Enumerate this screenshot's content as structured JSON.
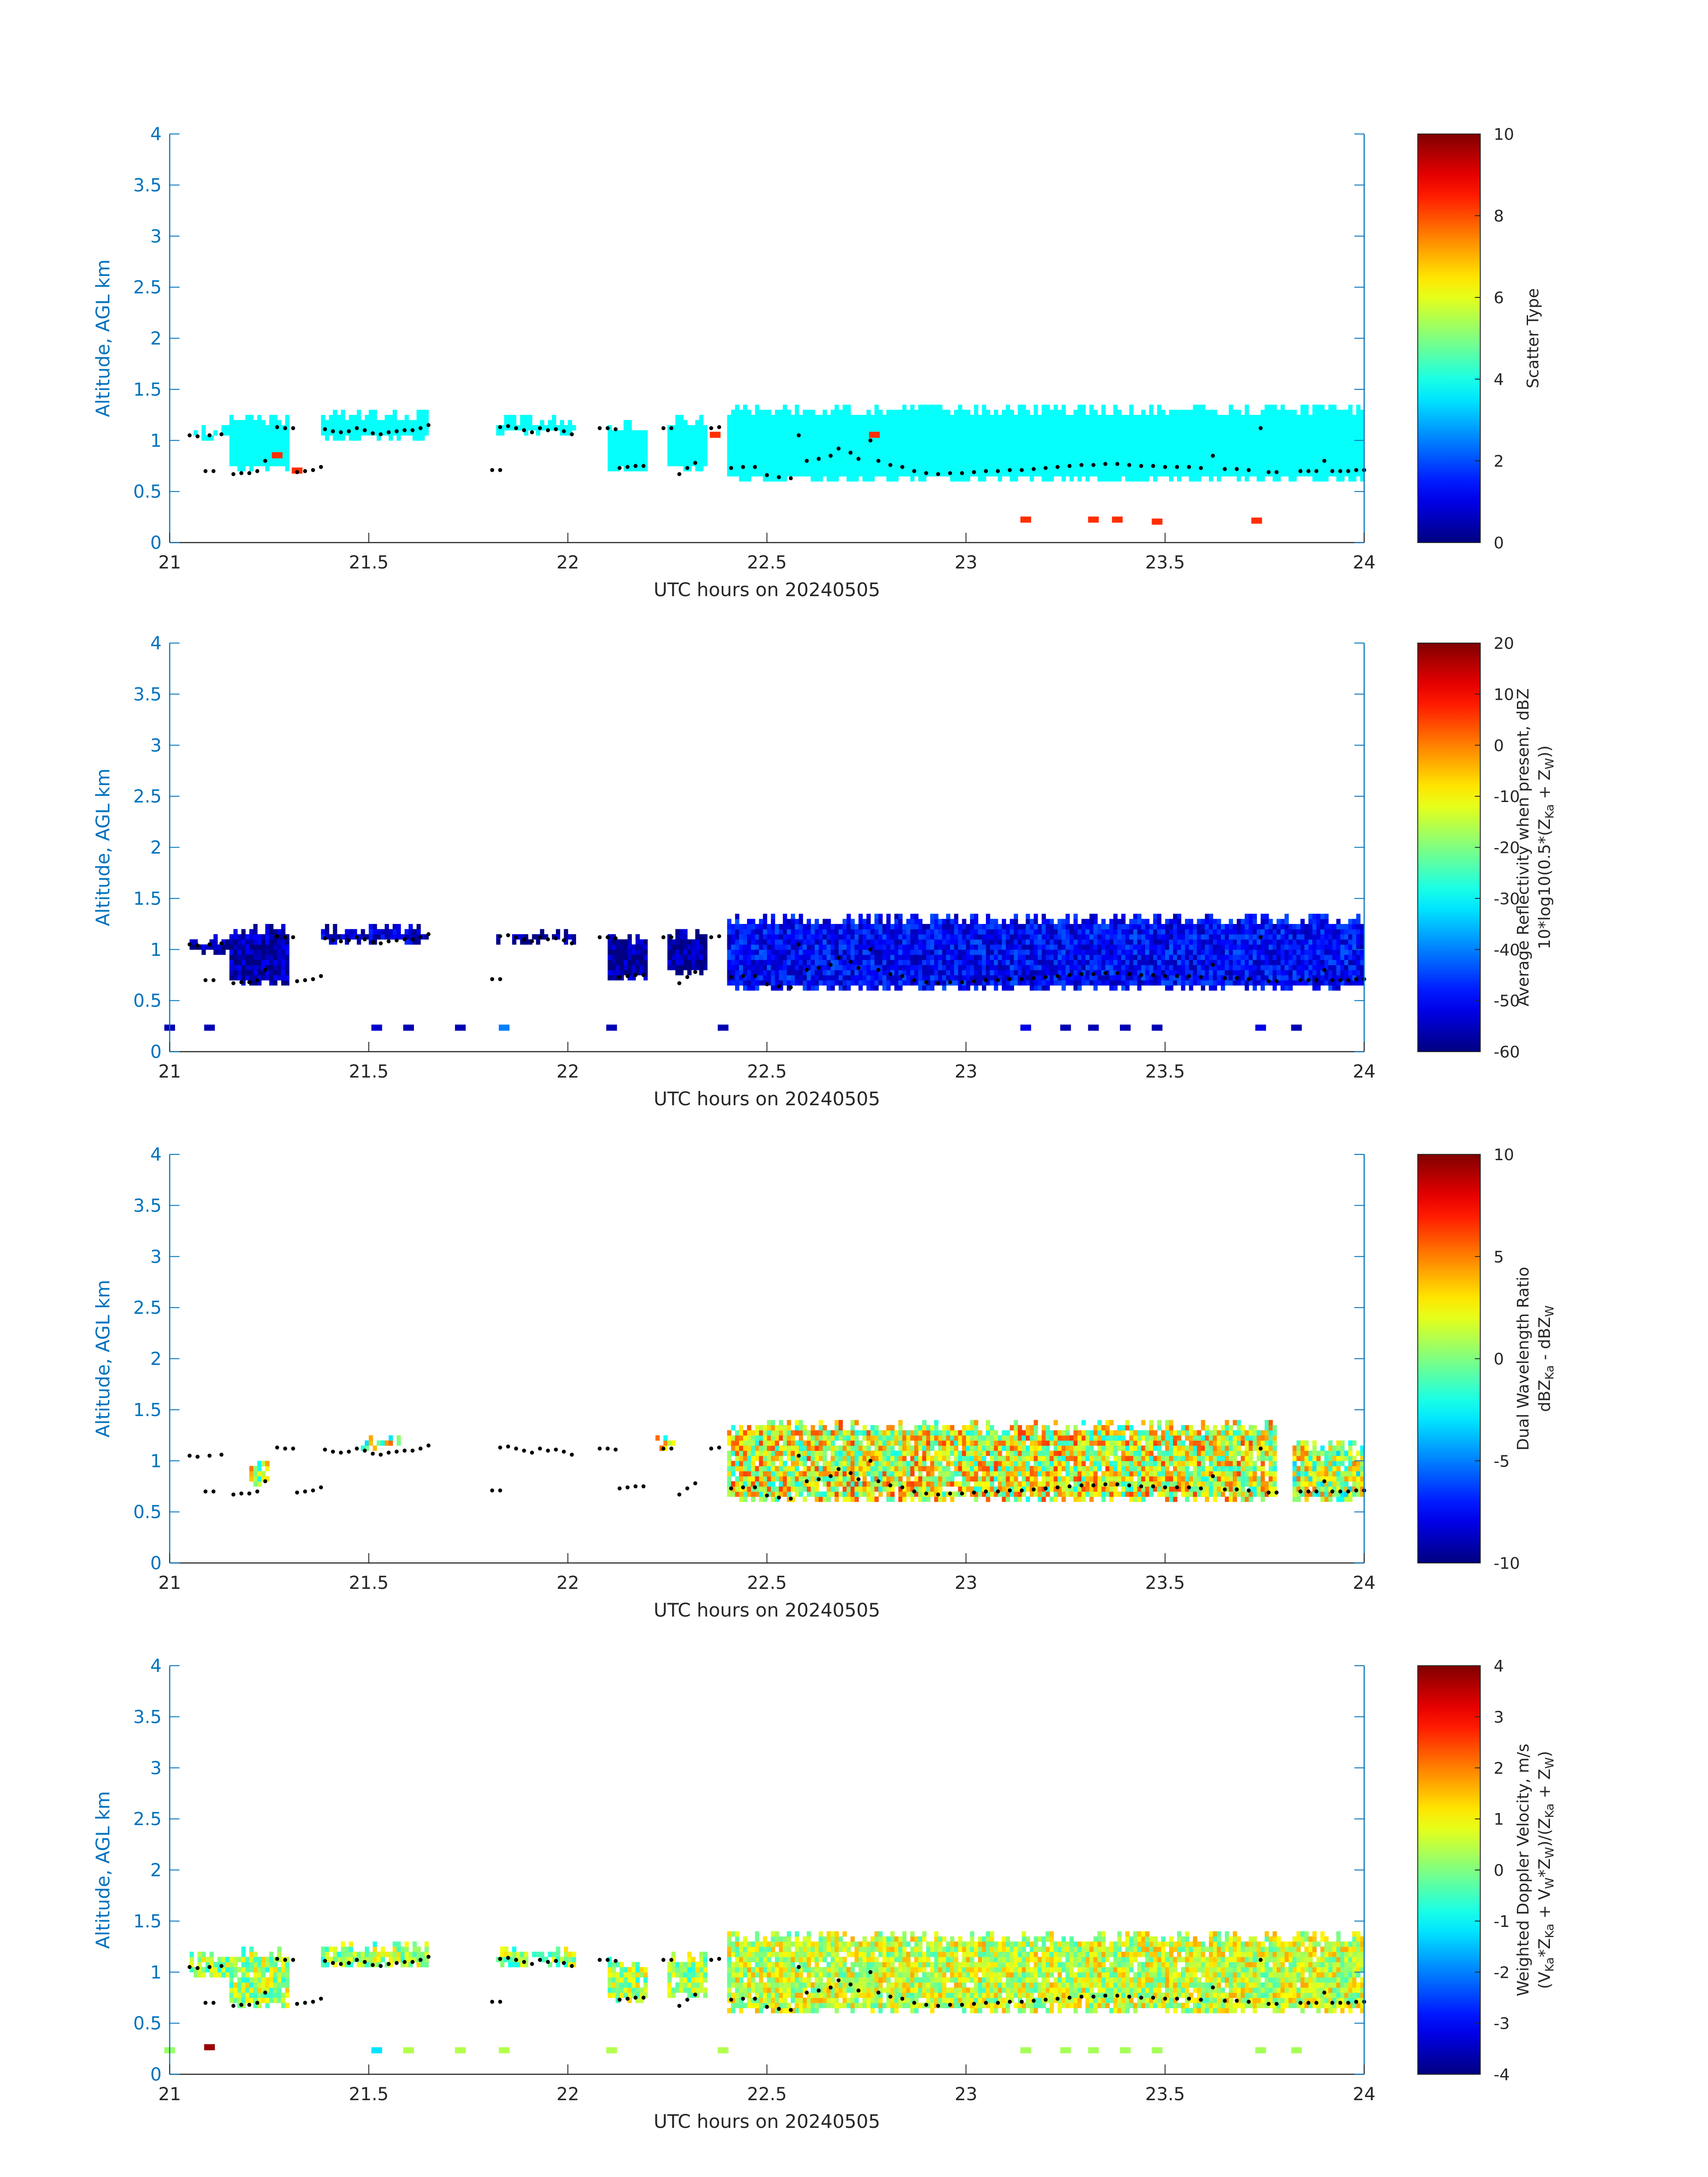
{
  "chart_data": [
    {
      "type": "heatmap",
      "id": "scatter-type",
      "xlabel": "UTC hours on 20240505",
      "ylabel": "Altitude, AGL km",
      "xlim": [
        21,
        24
      ],
      "ylim": [
        0,
        4
      ],
      "x_ticks": [
        "21",
        "21.5",
        "22",
        "22.5",
        "23",
        "23.5",
        "24"
      ],
      "y_ticks": [
        "0",
        "0.5",
        "1",
        "1.5",
        "2",
        "2.5",
        "3",
        "3.5",
        "4"
      ],
      "colorbar": {
        "label_lines": [
          "Scatter Type"
        ],
        "range": [
          0,
          10
        ],
        "ticks": [
          "0",
          "2",
          "4",
          "6",
          "8",
          "10"
        ],
        "colormap": "jet"
      },
      "regions": [
        {
          "x": [
            21.05,
            21.15
          ],
          "y": [
            1.0,
            1.15
          ],
          "value": 3.8
        },
        {
          "x": [
            21.15,
            21.3
          ],
          "y": [
            0.7,
            1.25
          ],
          "value": 3.8
        },
        {
          "x": [
            21.38,
            21.65
          ],
          "y": [
            1.0,
            1.3
          ],
          "value": 3.8
        },
        {
          "x": [
            21.82,
            22.02
          ],
          "y": [
            1.05,
            1.25
          ],
          "value": 3.8
        },
        {
          "x": [
            22.1,
            22.2
          ],
          "y": [
            0.7,
            1.2
          ],
          "value": 3.8
        },
        {
          "x": [
            22.25,
            22.35
          ],
          "y": [
            0.7,
            1.25
          ],
          "value": 3.8
        },
        {
          "x": [
            22.4,
            24.0
          ],
          "y": [
            0.62,
            1.35
          ],
          "value": 3.8
        }
      ],
      "spots": [
        {
          "x": 21.27,
          "y": 0.85,
          "value": 8.3
        },
        {
          "x": 21.32,
          "y": 0.7,
          "value": 8.3
        },
        {
          "x": 22.37,
          "y": 1.05,
          "value": 8.3
        },
        {
          "x": 22.77,
          "y": 1.05,
          "value": 8.3
        },
        {
          "x": 23.15,
          "y": 0.22,
          "value": 8.3
        },
        {
          "x": 23.32,
          "y": 0.22,
          "value": 8.3
        },
        {
          "x": 23.38,
          "y": 0.22,
          "value": 8.3
        },
        {
          "x": 23.48,
          "y": 0.2,
          "value": 8.3
        },
        {
          "x": 23.73,
          "y": 0.21,
          "value": 8.3
        }
      ]
    },
    {
      "type": "heatmap",
      "id": "reflectivity",
      "xlabel": "UTC hours on 20240505",
      "ylabel": "Altitude, AGL km",
      "xlim": [
        21,
        24
      ],
      "ylim": [
        0,
        4
      ],
      "x_ticks": [
        "21",
        "21.5",
        "22",
        "22.5",
        "23",
        "23.5",
        "24"
      ],
      "y_ticks": [
        "0",
        "0.5",
        "1",
        "1.5",
        "2",
        "2.5",
        "3",
        "3.5",
        "4"
      ],
      "colorbar": {
        "label_lines": [
          "Average Reflectivity when present, dBZ",
          "10*log10(0.5*(Z",
          "Ka",
          " + Z",
          "W",
          "))"
        ],
        "range": [
          -60,
          20
        ],
        "ticks": [
          "-60",
          "-50",
          "-40",
          "-30",
          "-20",
          "-10",
          "0",
          "10",
          "20"
        ],
        "colormap": "jet"
      },
      "regions": [
        {
          "x": [
            21.05,
            21.15
          ],
          "y": [
            0.95,
            1.15
          ],
          "value": -58
        },
        {
          "x": [
            21.15,
            21.3
          ],
          "y": [
            0.65,
            1.25
          ],
          "value": -56
        },
        {
          "x": [
            21.38,
            21.65
          ],
          "y": [
            1.05,
            1.25
          ],
          "value": -54
        },
        {
          "x": [
            21.82,
            22.02
          ],
          "y": [
            1.05,
            1.2
          ],
          "value": -58
        },
        {
          "x": [
            22.1,
            22.2
          ],
          "y": [
            0.7,
            1.15
          ],
          "value": -58
        },
        {
          "x": [
            22.25,
            22.35
          ],
          "y": [
            0.75,
            1.2
          ],
          "value": -58
        },
        {
          "x": [
            22.4,
            24.0
          ],
          "y": [
            0.6,
            1.35
          ],
          "value": -50
        }
      ],
      "spots": [
        {
          "x": 21.0,
          "y": 0.23,
          "value": -56
        },
        {
          "x": 21.1,
          "y": 0.23,
          "value": -56
        },
        {
          "x": 21.52,
          "y": 0.23,
          "value": -54
        },
        {
          "x": 21.6,
          "y": 0.23,
          "value": -56
        },
        {
          "x": 21.73,
          "y": 0.23,
          "value": -56
        },
        {
          "x": 21.84,
          "y": 0.23,
          "value": -40
        },
        {
          "x": 22.11,
          "y": 0.23,
          "value": -56
        },
        {
          "x": 22.39,
          "y": 0.23,
          "value": -56
        },
        {
          "x": 23.15,
          "y": 0.23,
          "value": -52
        },
        {
          "x": 23.25,
          "y": 0.23,
          "value": -56
        },
        {
          "x": 23.32,
          "y": 0.23,
          "value": -56
        },
        {
          "x": 23.4,
          "y": 0.23,
          "value": -56
        },
        {
          "x": 23.48,
          "y": 0.23,
          "value": -56
        },
        {
          "x": 23.74,
          "y": 0.23,
          "value": -52
        },
        {
          "x": 23.83,
          "y": 0.23,
          "value": -56
        }
      ]
    },
    {
      "type": "heatmap",
      "id": "dual-wavelength-ratio",
      "xlabel": "UTC hours on 20240505",
      "ylabel": "Altitude, AGL km",
      "xlim": [
        21,
        24
      ],
      "ylim": [
        0,
        4
      ],
      "x_ticks": [
        "21",
        "21.5",
        "22",
        "22.5",
        "23",
        "23.5",
        "24"
      ],
      "y_ticks": [
        "0",
        "0.5",
        "1",
        "1.5",
        "2",
        "2.5",
        "3",
        "3.5",
        "4"
      ],
      "colorbar": {
        "label_lines": [
          "Dual Wavelength Ratio",
          "dBZ",
          "Ka",
          " - dBZ",
          "W"
        ],
        "range": [
          -10,
          10
        ],
        "ticks": [
          "-10",
          "-5",
          "0",
          "5",
          "10"
        ],
        "colormap": "jet"
      },
      "regions": [
        {
          "x": [
            21.2,
            21.25
          ],
          "y": [
            0.75,
            1.0
          ],
          "value": 1.5
        },
        {
          "x": [
            21.48,
            21.58
          ],
          "y": [
            1.1,
            1.25
          ],
          "value": 1.0
        },
        {
          "x": [
            22.22,
            22.27
          ],
          "y": [
            1.1,
            1.25
          ],
          "value": 2.0
        },
        {
          "x": [
            22.4,
            23.78
          ],
          "y": [
            0.62,
            1.38
          ],
          "value": 2.0
        },
        {
          "x": [
            23.82,
            24.0
          ],
          "y": [
            0.62,
            1.18
          ],
          "value": 1.0
        }
      ],
      "spots": []
    },
    {
      "type": "heatmap",
      "id": "doppler-velocity",
      "xlabel": "UTC hours on 20240505",
      "ylabel": "Altitude, AGL km",
      "xlim": [
        21,
        24
      ],
      "ylim": [
        0,
        4
      ],
      "x_ticks": [
        "21",
        "21.5",
        "22",
        "22.5",
        "23",
        "23.5",
        "24"
      ],
      "y_ticks": [
        "0",
        "0.5",
        "1",
        "1.5",
        "2",
        "2.5",
        "3",
        "3.5",
        "4"
      ],
      "colorbar": {
        "label_lines": [
          "Weighted Doppler Velocity, m/s",
          "(V",
          "Ka",
          "*Z",
          "Ka",
          " + V",
          "W",
          "*Z",
          "W",
          ")/(Z",
          "Ka",
          " + Z",
          "W",
          ")"
        ],
        "range": [
          -4,
          4
        ],
        "ticks": [
          "-4",
          "-3",
          "-2",
          "-1",
          "0",
          "1",
          "2",
          "3",
          "4"
        ],
        "colormap": "jet"
      },
      "regions": [
        {
          "x": [
            21.05,
            21.15
          ],
          "y": [
            0.95,
            1.2
          ],
          "value": 0.2
        },
        {
          "x": [
            21.15,
            21.3
          ],
          "y": [
            0.65,
            1.25
          ],
          "value": 0.3
        },
        {
          "x": [
            21.38,
            21.65
          ],
          "y": [
            1.05,
            1.3
          ],
          "value": 0.2
        },
        {
          "x": [
            21.82,
            22.02
          ],
          "y": [
            1.05,
            1.25
          ],
          "value": 0.2
        },
        {
          "x": [
            22.1,
            22.2
          ],
          "y": [
            0.7,
            1.15
          ],
          "value": 0.3
        },
        {
          "x": [
            22.25,
            22.35
          ],
          "y": [
            0.75,
            1.2
          ],
          "value": 0.2
        },
        {
          "x": [
            22.4,
            24.0
          ],
          "y": [
            0.62,
            1.38
          ],
          "value": 0.6
        }
      ],
      "spots": [
        {
          "x": 21.0,
          "y": 0.23,
          "value": 0.2
        },
        {
          "x": 21.1,
          "y": 0.26,
          "value": 3.8
        },
        {
          "x": 21.52,
          "y": 0.23,
          "value": -1.2
        },
        {
          "x": 21.6,
          "y": 0.23,
          "value": 0.4
        },
        {
          "x": 21.73,
          "y": 0.23,
          "value": 0.4
        },
        {
          "x": 21.84,
          "y": 0.23,
          "value": 0.4
        },
        {
          "x": 22.11,
          "y": 0.23,
          "value": 0.4
        },
        {
          "x": 22.39,
          "y": 0.23,
          "value": 0.4
        },
        {
          "x": 23.15,
          "y": 0.23,
          "value": 0.3
        },
        {
          "x": 23.25,
          "y": 0.23,
          "value": 0.3
        },
        {
          "x": 23.32,
          "y": 0.23,
          "value": 0.3
        },
        {
          "x": 23.4,
          "y": 0.23,
          "value": 0.3
        },
        {
          "x": 23.48,
          "y": 0.23,
          "value": 0.3
        },
        {
          "x": 23.74,
          "y": 0.23,
          "value": 0.3
        },
        {
          "x": 23.83,
          "y": 0.23,
          "value": 0.3
        }
      ]
    }
  ],
  "cloud_base_points": [
    {
      "x": 21.05,
      "y": 1.05
    },
    {
      "x": 21.07,
      "y": 1.04
    },
    {
      "x": 21.1,
      "y": 1.05
    },
    {
      "x": 21.13,
      "y": 1.06
    },
    {
      "x": 21.09,
      "y": 0.7
    },
    {
      "x": 21.11,
      "y": 0.7
    },
    {
      "x": 21.16,
      "y": 0.67
    },
    {
      "x": 21.18,
      "y": 0.68
    },
    {
      "x": 21.2,
      "y": 0.68
    },
    {
      "x": 21.22,
      "y": 0.7
    },
    {
      "x": 21.24,
      "y": 0.8
    },
    {
      "x": 21.27,
      "y": 1.13
    },
    {
      "x": 21.29,
      "y": 1.12
    },
    {
      "x": 21.31,
      "y": 1.12
    },
    {
      "x": 21.32,
      "y": 0.69
    },
    {
      "x": 21.34,
      "y": 0.7
    },
    {
      "x": 21.36,
      "y": 0.71
    },
    {
      "x": 21.38,
      "y": 0.74
    },
    {
      "x": 21.39,
      "y": 1.11
    },
    {
      "x": 21.41,
      "y": 1.09
    },
    {
      "x": 21.43,
      "y": 1.08
    },
    {
      "x": 21.45,
      "y": 1.09
    },
    {
      "x": 21.47,
      "y": 1.12
    },
    {
      "x": 21.49,
      "y": 1.1
    },
    {
      "x": 21.51,
      "y": 1.07
    },
    {
      "x": 21.53,
      "y": 1.06
    },
    {
      "x": 21.55,
      "y": 1.08
    },
    {
      "x": 21.57,
      "y": 1.09
    },
    {
      "x": 21.59,
      "y": 1.1
    },
    {
      "x": 21.61,
      "y": 1.1
    },
    {
      "x": 21.63,
      "y": 1.12
    },
    {
      "x": 21.65,
      "y": 1.15
    },
    {
      "x": 21.81,
      "y": 0.71
    },
    {
      "x": 21.83,
      "y": 0.71
    },
    {
      "x": 21.83,
      "y": 1.13
    },
    {
      "x": 21.85,
      "y": 1.14
    },
    {
      "x": 21.87,
      "y": 1.12
    },
    {
      "x": 21.89,
      "y": 1.1
    },
    {
      "x": 21.91,
      "y": 1.08
    },
    {
      "x": 21.93,
      "y": 1.12
    },
    {
      "x": 21.95,
      "y": 1.1
    },
    {
      "x": 21.97,
      "y": 1.11
    },
    {
      "x": 21.99,
      "y": 1.09
    },
    {
      "x": 22.01,
      "y": 1.06
    },
    {
      "x": 22.08,
      "y": 1.12
    },
    {
      "x": 22.1,
      "y": 1.12
    },
    {
      "x": 22.12,
      "y": 1.11
    },
    {
      "x": 22.13,
      "y": 0.73
    },
    {
      "x": 22.15,
      "y": 0.74
    },
    {
      "x": 22.17,
      "y": 0.75
    },
    {
      "x": 22.19,
      "y": 0.75
    },
    {
      "x": 22.24,
      "y": 1.12
    },
    {
      "x": 22.26,
      "y": 1.12
    },
    {
      "x": 22.28,
      "y": 0.67
    },
    {
      "x": 22.3,
      "y": 0.73
    },
    {
      "x": 22.32,
      "y": 0.78
    },
    {
      "x": 22.36,
      "y": 1.12
    },
    {
      "x": 22.38,
      "y": 1.13
    },
    {
      "x": 22.41,
      "y": 0.73
    },
    {
      "x": 22.44,
      "y": 0.74
    },
    {
      "x": 22.47,
      "y": 0.74
    },
    {
      "x": 22.5,
      "y": 0.66
    },
    {
      "x": 22.53,
      "y": 0.64
    },
    {
      "x": 22.56,
      "y": 0.63
    },
    {
      "x": 22.58,
      "y": 1.05
    },
    {
      "x": 22.6,
      "y": 0.8
    },
    {
      "x": 22.63,
      "y": 0.82
    },
    {
      "x": 22.66,
      "y": 0.85
    },
    {
      "x": 22.68,
      "y": 0.92
    },
    {
      "x": 22.71,
      "y": 0.88
    },
    {
      "x": 22.73,
      "y": 0.82
    },
    {
      "x": 22.76,
      "y": 1.0
    },
    {
      "x": 22.78,
      "y": 0.8
    },
    {
      "x": 22.81,
      "y": 0.76
    },
    {
      "x": 22.84,
      "y": 0.74
    },
    {
      "x": 22.87,
      "y": 0.7
    },
    {
      "x": 22.9,
      "y": 0.68
    },
    {
      "x": 22.93,
      "y": 0.67
    },
    {
      "x": 22.96,
      "y": 0.68
    },
    {
      "x": 22.99,
      "y": 0.68
    },
    {
      "x": 23.02,
      "y": 0.69
    },
    {
      "x": 23.05,
      "y": 0.7
    },
    {
      "x": 23.08,
      "y": 0.7
    },
    {
      "x": 23.11,
      "y": 0.71
    },
    {
      "x": 23.14,
      "y": 0.71
    },
    {
      "x": 23.17,
      "y": 0.72
    },
    {
      "x": 23.2,
      "y": 0.73
    },
    {
      "x": 23.23,
      "y": 0.74
    },
    {
      "x": 23.26,
      "y": 0.75
    },
    {
      "x": 23.29,
      "y": 0.76
    },
    {
      "x": 23.32,
      "y": 0.76
    },
    {
      "x": 23.35,
      "y": 0.77
    },
    {
      "x": 23.38,
      "y": 0.77
    },
    {
      "x": 23.41,
      "y": 0.76
    },
    {
      "x": 23.44,
      "y": 0.75
    },
    {
      "x": 23.47,
      "y": 0.75
    },
    {
      "x": 23.5,
      "y": 0.74
    },
    {
      "x": 23.53,
      "y": 0.74
    },
    {
      "x": 23.56,
      "y": 0.74
    },
    {
      "x": 23.59,
      "y": 0.73
    },
    {
      "x": 23.62,
      "y": 0.85
    },
    {
      "x": 23.65,
      "y": 0.72
    },
    {
      "x": 23.68,
      "y": 0.72
    },
    {
      "x": 23.71,
      "y": 0.71
    },
    {
      "x": 23.74,
      "y": 1.12
    },
    {
      "x": 23.76,
      "y": 0.69
    },
    {
      "x": 23.78,
      "y": 0.69
    },
    {
      "x": 23.84,
      "y": 0.7
    },
    {
      "x": 23.86,
      "y": 0.7
    },
    {
      "x": 23.88,
      "y": 0.7
    },
    {
      "x": 23.9,
      "y": 0.8
    },
    {
      "x": 23.92,
      "y": 0.7
    },
    {
      "x": 23.94,
      "y": 0.7
    },
    {
      "x": 23.96,
      "y": 0.7
    },
    {
      "x": 23.98,
      "y": 0.71
    },
    {
      "x": 24.0,
      "y": 0.71
    }
  ],
  "colors": {
    "axis": "#0072bd",
    "text": "#262626",
    "cloud_base": "#000000"
  }
}
